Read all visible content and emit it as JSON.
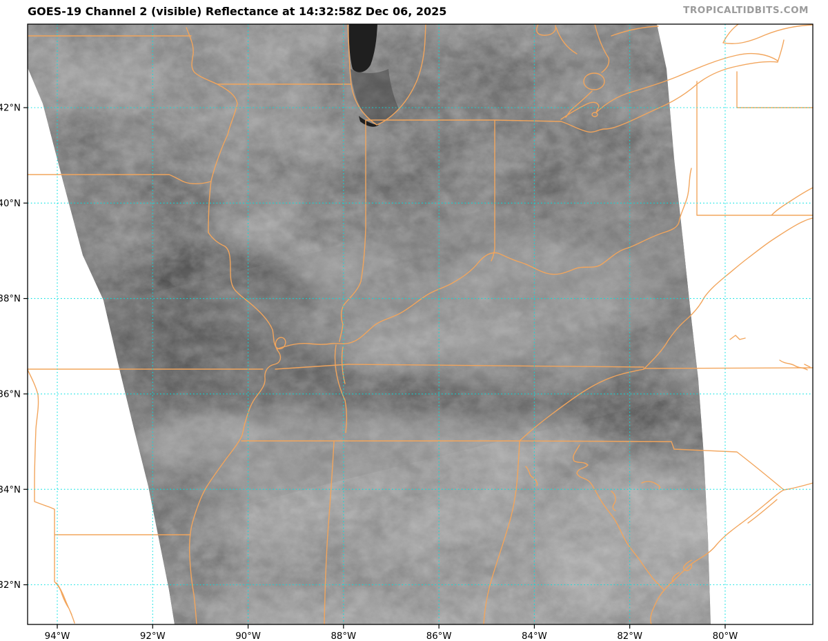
{
  "header": {
    "title": "GOES-19 Channel 2 (visible) Reflectance at 14:32:58Z Dec 06, 2025",
    "watermark": "TROPICALTIDBITS.COM"
  },
  "map": {
    "product": "GOES-19 Channel 2 (visible) Reflectance",
    "valid_time": "14:32:58Z Dec 06, 2025",
    "axes": {
      "lat_ticks": [
        {
          "value": 42,
          "label": "42°N"
        },
        {
          "value": 40,
          "label": "40°N"
        },
        {
          "value": 38,
          "label": "38°N"
        },
        {
          "value": 36,
          "label": "36°N"
        },
        {
          "value": 34,
          "label": "34°N"
        },
        {
          "value": 32,
          "label": "32°N"
        }
      ],
      "lon_ticks": [
        {
          "value": 94,
          "label": "94°W"
        },
        {
          "value": 92,
          "label": "92°W"
        },
        {
          "value": 90,
          "label": "90°W"
        },
        {
          "value": 88,
          "label": "88°W"
        },
        {
          "value": 86,
          "label": "86°W"
        },
        {
          "value": 84,
          "label": "84°W"
        },
        {
          "value": 82,
          "label": "82°W"
        },
        {
          "value": 80,
          "label": "80°W"
        }
      ]
    },
    "colors": {
      "boundaries": "#F2A55C",
      "gridlines": "#00E0E0",
      "water": "#1F1F1F",
      "image_base_gray": "#6B6B6B",
      "no_data": "#FFFFFF",
      "plot_border": "#000000",
      "axis_text": "#000000",
      "watermark": "#9B9B9B"
    }
  }
}
